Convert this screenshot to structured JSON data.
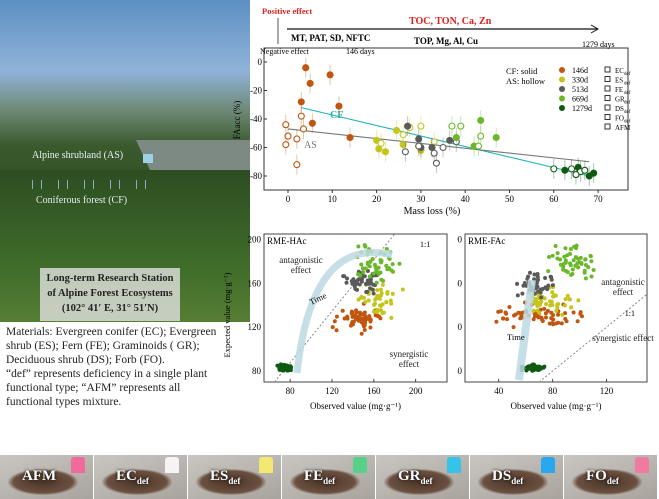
{
  "photo": {
    "shrub_label": "Alpine shrubland (AS)",
    "forest_label": "Coniferous forest (CF)",
    "station": [
      "Long-term Research Station",
      "of Alpine Forest Ecosystems",
      "(102° 41′ E, 31° 51′N)"
    ]
  },
  "materials": [
    "Materials: Evergreen conifer (EC); Evergreen shrub (ES); Fern (FE); Graminoids ( GR); Deciduous shrub (DS); Forb (FO).",
    "“def” represents deficiency in a single plant functional type; “AFM” represents all functional types mixture."
  ],
  "timeline": {
    "positive": "Positive effect",
    "negative": "Negative effect",
    "early": "MT, PAT, SD, NFTC",
    "d146": "146 days",
    "pos_late": "TOC, TON, Ca, Zn",
    "neg_late": "TOP, Mg, Al, Cu",
    "d1279": "1279 days"
  },
  "colors": {
    "146d": "#c0560f",
    "330d": "#c4c41a",
    "513d": "#5a5a5a",
    "669d": "#6ab82a",
    "1279d": "#0f5a12",
    "CF": "#1fb5b5",
    "AS": "#777777"
  },
  "chart_data": [
    {
      "type": "scatter",
      "xlabel": "Mass loss (%)",
      "ylabel": "FAacc (%)",
      "xlim": [
        -5,
        75
      ],
      "ylim": [
        -90,
        5
      ],
      "xticks": [
        "0",
        "10",
        "20",
        "30",
        "40",
        "50",
        "60",
        "70"
      ],
      "yticks": [
        "0",
        "-20",
        "-40",
        "-60",
        "-80"
      ],
      "legend_note": [
        "CF: solid",
        "AS: hollow"
      ],
      "stages": [
        "146d",
        "330d",
        "513d",
        "669d",
        "1279d"
      ],
      "types": [
        "EC",
        "ES",
        "FE",
        "GR",
        "DS",
        "FO",
        "AFM"
      ],
      "type_sub": "def",
      "points": [
        {
          "s": "146d",
          "solid": true,
          "pts": [
            [
              4,
              -4
            ],
            [
              5,
              -15
            ],
            [
              9.5,
              -9
            ],
            [
              11.5,
              -31
            ],
            [
              3,
              -28
            ],
            [
              5.5,
              -43
            ],
            [
              14,
              -53
            ]
          ]
        },
        {
          "s": "146d",
          "solid": false,
          "pts": [
            [
              -0.5,
              -44
            ],
            [
              0,
              -52
            ],
            [
              2,
              -54
            ],
            [
              -0.5,
              -58
            ],
            [
              3,
              -38
            ],
            [
              3.5,
              -47
            ],
            [
              2,
              -72
            ]
          ]
        },
        {
          "s": "330d",
          "solid": true,
          "pts": [
            [
              20,
              -55
            ],
            [
              20.5,
              -61
            ],
            [
              22,
              -63
            ],
            [
              24.5,
              -48
            ],
            [
              26,
              -58
            ],
            [
              30,
              -62
            ]
          ]
        },
        {
          "s": "330d",
          "solid": false,
          "pts": [
            [
              21,
              -57
            ],
            [
              27.5,
              -46
            ],
            [
              26,
              -51
            ],
            [
              33,
              -56
            ],
            [
              30,
              -45
            ]
          ]
        },
        {
          "s": "513d",
          "solid": true,
          "pts": [
            [
              27,
              -45
            ],
            [
              29.5,
              -54
            ],
            [
              30,
              -60
            ],
            [
              32.5,
              -60
            ],
            [
              36.5,
              -55
            ]
          ]
        },
        {
          "s": "513d",
          "solid": false,
          "pts": [
            [
              26.5,
              -63
            ],
            [
              29.5,
              -59
            ],
            [
              33,
              -64
            ],
            [
              33.5,
              -71
            ],
            [
              35,
              -60
            ],
            [
              38,
              -56
            ]
          ]
        },
        {
          "s": "669d",
          "solid": true,
          "pts": [
            [
              43.5,
              -41
            ],
            [
              47,
              -53
            ],
            [
              38,
              -53
            ],
            [
              42,
              -59
            ]
          ]
        },
        {
          "s": "669d",
          "solid": false,
          "pts": [
            [
              37,
              -45
            ],
            [
              39,
              -45
            ],
            [
              43.5,
              -52
            ],
            [
              43,
              -59
            ]
          ]
        },
        {
          "s": "1279d",
          "solid": true,
          "pts": [
            [
              65.5,
              -74
            ],
            [
              68,
              -80
            ],
            [
              69,
              -78
            ],
            [
              62.5,
              -76
            ]
          ]
        },
        {
          "s": "1279d",
          "solid": false,
          "pts": [
            [
              60,
              -75
            ],
            [
              64,
              -75
            ],
            [
              66,
              -77
            ],
            [
              67,
              -76
            ],
            [
              65,
              -79
            ]
          ]
        }
      ],
      "fits": [
        {
          "name": "CF",
          "from": [
            3,
            -32
          ],
          "to": [
            68,
            -80
          ]
        },
        {
          "name": "AS",
          "from": [
            0,
            -47
          ],
          "to": [
            68,
            -70
          ]
        }
      ]
    },
    {
      "type": "scatter",
      "title": "RME-HAc",
      "xlabel": "Observed value (mg·g⁻¹)",
      "ylabel": "Expected value (mg·g⁻¹)",
      "xlim": [
        55,
        230
      ],
      "ylim": [
        70,
        205
      ],
      "xticks": [
        "80",
        "120",
        "160",
        "200"
      ],
      "yticks": [
        "80",
        "120",
        "160",
        "200"
      ],
      "annotations": [
        "antagonistic effect",
        "synergistic effect",
        "1:1",
        "Time"
      ],
      "clusters": [
        {
          "s": "146d",
          "cx": 148,
          "cy": 128,
          "sx": 18,
          "sy": 10,
          "n": 60
        },
        {
          "s": "330d",
          "cx": 165,
          "cy": 145,
          "sx": 16,
          "sy": 12,
          "n": 45
        },
        {
          "s": "513d",
          "cx": 148,
          "cy": 162,
          "sx": 14,
          "sy": 8,
          "n": 45
        },
        {
          "s": "669d",
          "cx": 162,
          "cy": 178,
          "sx": 15,
          "sy": 14,
          "n": 50
        },
        {
          "s": "1279d",
          "cx": 75,
          "cy": 83,
          "sx": 6,
          "sy": 2.5,
          "n": 60
        }
      ]
    },
    {
      "type": "scatter",
      "title": "RME-FAc",
      "xlabel": "Observed value (mg·g⁻¹)",
      "xlim": [
        15,
        150
      ],
      "ylim": [
        70,
        205
      ],
      "xticks": [
        "40",
        "80",
        "120"
      ],
      "yticks": [
        "80",
        "120",
        "160",
        "200"
      ],
      "annotations": [
        "antagonistic effect",
        "synergistic effect",
        "1:1",
        "Time"
      ],
      "clusters": [
        {
          "s": "146d",
          "cx": 70,
          "cy": 130,
          "sx": 25,
          "sy": 8,
          "n": 60
        },
        {
          "s": "330d",
          "cx": 78,
          "cy": 145,
          "sx": 18,
          "sy": 11,
          "n": 45
        },
        {
          "s": "513d",
          "cx": 68,
          "cy": 157,
          "sx": 12,
          "sy": 9,
          "n": 45
        },
        {
          "s": "669d",
          "cx": 95,
          "cy": 178,
          "sx": 13,
          "sy": 14,
          "n": 50
        },
        {
          "s": "1279d",
          "cx": 66,
          "cy": 83,
          "sx": 7,
          "sy": 2.5,
          "n": 60
        }
      ]
    }
  ],
  "strip": [
    {
      "main": "AFM",
      "sub": "",
      "tag": "#f06a9a"
    },
    {
      "main": "EC",
      "sub": "def",
      "tag": "#f4f4f4"
    },
    {
      "main": "ES",
      "sub": "def",
      "tag": "#f2e872"
    },
    {
      "main": "FE",
      "sub": "def",
      "tag": "#58d08a"
    },
    {
      "main": "GR",
      "sub": "def",
      "tag": "#35c4e8"
    },
    {
      "main": "DS",
      "sub": "def",
      "tag": "#2aa8ee"
    },
    {
      "main": "FO",
      "sub": "def",
      "tag": "#f07aa0"
    }
  ]
}
